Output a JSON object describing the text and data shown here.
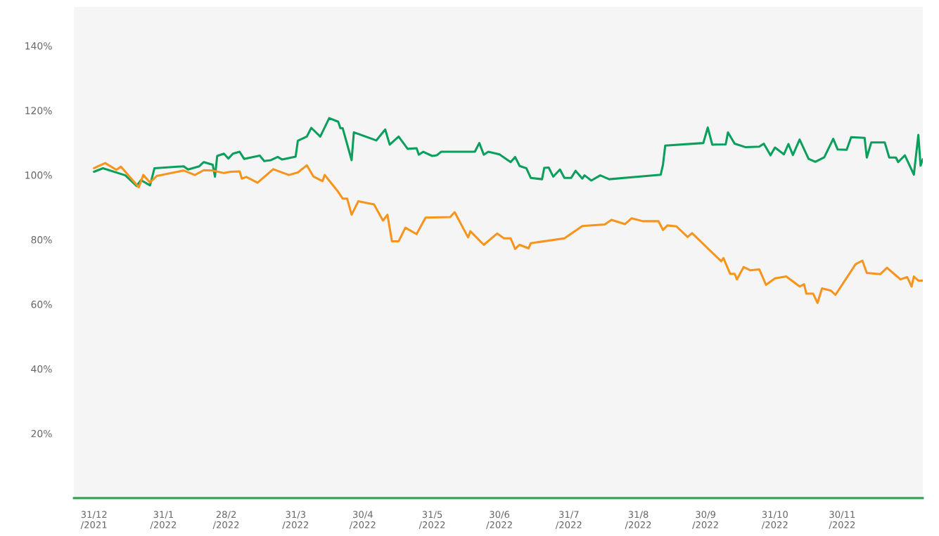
{
  "chart_data": {
    "type": "line",
    "xlim": [
      "2021-12-22",
      "2023-01-05"
    ],
    "ylim": [
      0,
      152
    ],
    "xticks": [
      {
        "value": "2021-12-31",
        "label": "31/12\n/2021"
      },
      {
        "value": "2022-01-31",
        "label": "31/1\n/2022"
      },
      {
        "value": "2022-02-28",
        "label": "28/2\n/2022"
      },
      {
        "value": "2022-03-31",
        "label": "31/3\n/2022"
      },
      {
        "value": "2022-04-30",
        "label": "30/4\n/2022"
      },
      {
        "value": "2022-05-31",
        "label": "31/5\n/2022"
      },
      {
        "value": "2022-06-30",
        "label": "30/6\n/2022"
      },
      {
        "value": "2022-07-31",
        "label": "31/7\n/2022"
      },
      {
        "value": "2022-08-31",
        "label": "31/8\n/2022"
      },
      {
        "value": "2022-09-30",
        "label": "30/9\n/2022"
      },
      {
        "value": "2022-10-31",
        "label": "31/10\n/2022"
      },
      {
        "value": "2022-11-30",
        "label": "30/11\n/2022"
      }
    ],
    "yticks": [
      {
        "value": 20,
        "label": "20%"
      },
      {
        "value": 40,
        "label": "40%"
      },
      {
        "value": 60,
        "label": "60%"
      },
      {
        "value": 80,
        "label": "80%"
      },
      {
        "value": 100,
        "label": "100%"
      },
      {
        "value": 120,
        "label": "120%"
      },
      {
        "value": 140,
        "label": "140%"
      }
    ],
    "grid": false,
    "legend": false,
    "marker": "none",
    "line_style": "solid",
    "series": [
      {
        "color": "#0a9f5c",
        "x": [
          "2021-12-31",
          "2022-01-04",
          "2022-01-14",
          "2022-01-19",
          "2022-01-21",
          "2022-01-25",
          "2022-01-27",
          "2022-02-09",
          "2022-02-11",
          "2022-02-16",
          "2022-02-18",
          "2022-02-22",
          "2022-02-23",
          "2022-02-24",
          "2022-02-27",
          "2022-03-01",
          "2022-03-03",
          "2022-03-06",
          "2022-03-08",
          "2022-03-15",
          "2022-03-17",
          "2022-03-20",
          "2022-03-23",
          "2022-03-25",
          "2022-03-31",
          "2022-04-01",
          "2022-04-05",
          "2022-04-07",
          "2022-04-11",
          "2022-04-15",
          "2022-04-19",
          "2022-04-20",
          "2022-04-21",
          "2022-04-25",
          "2022-04-26",
          "2022-05-06",
          "2022-05-10",
          "2022-05-12",
          "2022-05-16",
          "2022-05-20",
          "2022-05-24",
          "2022-05-25",
          "2022-05-27",
          "2022-05-31",
          "2022-06-02",
          "2022-06-04",
          "2022-06-19",
          "2022-06-21",
          "2022-06-23",
          "2022-06-25",
          "2022-06-30",
          "2022-07-05",
          "2022-07-07",
          "2022-07-09",
          "2022-07-12",
          "2022-07-14",
          "2022-07-19",
          "2022-07-20",
          "2022-07-22",
          "2022-07-24",
          "2022-07-27",
          "2022-07-29",
          "2022-08-01",
          "2022-08-03",
          "2022-08-06",
          "2022-08-07",
          "2022-08-10",
          "2022-08-14",
          "2022-08-18",
          "2022-09-10",
          "2022-09-11",
          "2022-09-12",
          "2022-09-29",
          "2022-10-01",
          "2022-10-03",
          "2022-10-09",
          "2022-10-10",
          "2022-10-13",
          "2022-10-18",
          "2022-10-24",
          "2022-10-26",
          "2022-10-29",
          "2022-10-31",
          "2022-11-04",
          "2022-11-06",
          "2022-11-08",
          "2022-11-11",
          "2022-11-15",
          "2022-11-18",
          "2022-11-22",
          "2022-11-26",
          "2022-11-28",
          "2022-12-02",
          "2022-12-04",
          "2022-12-10",
          "2022-12-11",
          "2022-12-13",
          "2022-12-19",
          "2022-12-21",
          "2022-12-24",
          "2022-12-25",
          "2022-12-28",
          "2023-01-01",
          "2023-01-03",
          "2023-01-04",
          "2023-01-05"
        ],
        "values": [
          101.0,
          102.1,
          99.9,
          96.6,
          98.4,
          96.8,
          102.1,
          102.7,
          101.7,
          102.7,
          104.0,
          103.2,
          99.5,
          105.9,
          106.6,
          105.1,
          106.6,
          107.2,
          105.0,
          106.0,
          104.3,
          104.6,
          105.6,
          104.8,
          105.7,
          110.6,
          111.9,
          114.6,
          111.9,
          117.6,
          116.5,
          114.5,
          114.5,
          104.6,
          113.2,
          110.7,
          114.1,
          109.4,
          111.9,
          108.1,
          108.3,
          106.3,
          107.2,
          105.9,
          106.1,
          107.2,
          107.2,
          109.9,
          106.3,
          107.2,
          106.4,
          104.0,
          105.6,
          102.8,
          102.1,
          99.1,
          98.7,
          102.2,
          102.3,
          99.5,
          101.7,
          99.1,
          99.1,
          101.3,
          98.9,
          99.9,
          98.3,
          99.9,
          98.7,
          100.1,
          103.2,
          109.1,
          109.9,
          114.7,
          109.4,
          109.5,
          113.2,
          109.7,
          108.6,
          108.8,
          109.7,
          106.1,
          108.5,
          106.4,
          109.6,
          106.2,
          111.0,
          105.0,
          104.1,
          105.5,
          111.2,
          107.9,
          107.8,
          111.7,
          111.5,
          105.4,
          110.1,
          110.1,
          105.4,
          105.4,
          104.0,
          106.1,
          100.1,
          112.4,
          102.9,
          104.9
        ]
      },
      {
        "color": "#f7941d",
        "x": [
          "2021-12-31",
          "2022-01-05",
          "2022-01-10",
          "2022-01-12",
          "2022-01-20",
          "2022-01-22",
          "2022-01-25",
          "2022-01-28",
          "2022-02-09",
          "2022-02-14",
          "2022-02-18",
          "2022-02-22",
          "2022-02-27",
          "2022-03-02",
          "2022-03-06",
          "2022-03-07",
          "2022-03-09",
          "2022-03-14",
          "2022-03-21",
          "2022-03-28",
          "2022-04-01",
          "2022-04-05",
          "2022-04-08",
          "2022-04-12",
          "2022-04-13",
          "2022-04-19",
          "2022-04-21",
          "2022-04-23",
          "2022-04-25",
          "2022-04-28",
          "2022-05-05",
          "2022-05-09",
          "2022-05-11",
          "2022-05-13",
          "2022-05-16",
          "2022-05-19",
          "2022-05-24",
          "2022-05-28",
          "2022-06-08",
          "2022-06-10",
          "2022-06-16",
          "2022-06-17",
          "2022-06-23",
          "2022-06-29",
          "2022-07-02",
          "2022-07-05",
          "2022-07-07",
          "2022-07-09",
          "2022-07-13",
          "2022-07-14",
          "2022-07-29",
          "2022-08-06",
          "2022-08-16",
          "2022-08-19",
          "2022-08-25",
          "2022-08-28",
          "2022-09-02",
          "2022-09-09",
          "2022-09-11",
          "2022-09-13",
          "2022-09-17",
          "2022-09-22",
          "2022-09-24",
          "2022-10-07",
          "2022-10-08",
          "2022-10-11",
          "2022-10-13",
          "2022-10-14",
          "2022-10-17",
          "2022-10-20",
          "2022-10-24",
          "2022-10-27",
          "2022-10-31",
          "2022-11-05",
          "2022-11-11",
          "2022-11-13",
          "2022-11-14",
          "2022-11-17",
          "2022-11-19",
          "2022-11-21",
          "2022-11-25",
          "2022-11-27",
          "2022-12-06",
          "2022-12-09",
          "2022-12-11",
          "2022-12-17",
          "2022-12-20",
          "2022-12-26",
          "2022-12-29",
          "2022-12-31",
          "2023-01-01",
          "2023-01-03",
          "2023-01-05"
        ],
        "values": [
          102.1,
          103.7,
          101.6,
          102.6,
          96.2,
          100.0,
          97.7,
          99.7,
          101.4,
          100.0,
          101.5,
          101.4,
          100.6,
          101.0,
          101.1,
          98.9,
          99.4,
          97.6,
          101.8,
          100.0,
          100.8,
          103.0,
          99.5,
          98.1,
          100.0,
          94.8,
          92.7,
          92.7,
          87.7,
          91.9,
          90.9,
          85.9,
          87.7,
          79.5,
          79.5,
          83.7,
          81.7,
          86.8,
          87.0,
          88.5,
          80.7,
          82.6,
          78.4,
          81.9,
          80.4,
          80.4,
          77.1,
          78.4,
          77.3,
          78.9,
          80.4,
          84.2,
          84.7,
          86.1,
          84.8,
          86.6,
          85.7,
          85.7,
          83.0,
          84.4,
          84.1,
          80.8,
          82.0,
          73.3,
          74.3,
          69.4,
          69.4,
          67.7,
          71.5,
          70.5,
          70.8,
          66.0,
          68.0,
          68.6,
          65.5,
          66.2,
          63.3,
          63.3,
          60.4,
          64.9,
          64.2,
          62.9,
          72.4,
          73.5,
          69.7,
          69.3,
          71.3,
          67.7,
          68.4,
          65.5,
          68.6,
          67.3,
          67.3
        ]
      }
    ]
  }
}
